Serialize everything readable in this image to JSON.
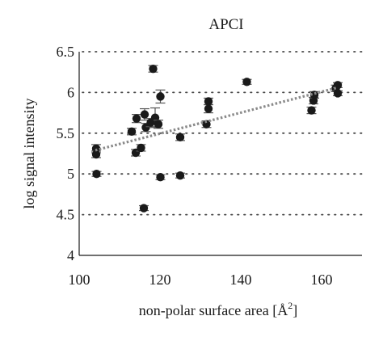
{
  "colors": {
    "point": "#1a1a1a",
    "errorbar": "#555555",
    "trendline": "#8a8a8a",
    "grid": "#4a4a4a",
    "axis": "#1a1a1a"
  },
  "chart_data": {
    "type": "scatter",
    "title": "APCI",
    "xlabel_text": "non-polar surface area [Å",
    "xlabel_unit_exponent": "2",
    "xlabel_close": "]",
    "ylabel": "log signal intensity",
    "xlim": [
      100,
      170
    ],
    "ylim": [
      4,
      6.5
    ],
    "xticks": [
      100,
      120,
      140,
      160
    ],
    "yticks": [
      "4",
      "4.5",
      "5",
      "5.5",
      "6",
      "6.5"
    ],
    "grid": "horizontal dotted",
    "trendline": {
      "style": "dotted",
      "x": [
        104,
        164
      ],
      "y": [
        5.29,
        6.06
      ]
    },
    "series": [
      {
        "points": [
          {
            "x": 104.2,
            "y": 5.31,
            "err": 0.05
          },
          {
            "x": 104.2,
            "y": 5.24,
            "err": 0.04
          },
          {
            "x": 104.3,
            "y": 5.0,
            "err": 0.03
          },
          {
            "x": 113.0,
            "y": 5.52,
            "err": 0.04
          },
          {
            "x": 114.0,
            "y": 5.26,
            "err": 0.04
          },
          {
            "x": 114.2,
            "y": 5.68,
            "err": 0.05
          },
          {
            "x": 115.3,
            "y": 5.32,
            "err": 0.04
          },
          {
            "x": 116.0,
            "y": 4.58,
            "err": 0.03
          },
          {
            "x": 116.2,
            "y": 5.73,
            "err": 0.07
          },
          {
            "x": 116.5,
            "y": 5.57,
            "err": 0.05
          },
          {
            "x": 117.7,
            "y": 5.63,
            "err": 0.05
          },
          {
            "x": 118.3,
            "y": 6.29,
            "err": 0.04
          },
          {
            "x": 118.8,
            "y": 5.69,
            "err": 0.12
          },
          {
            "x": 119.6,
            "y": 5.61,
            "err": 0.05
          },
          {
            "x": 120.1,
            "y": 5.95,
            "err": 0.08
          },
          {
            "x": 120.1,
            "y": 4.96,
            "err": 0.03
          },
          {
            "x": 125.0,
            "y": 5.45,
            "err": 0.04
          },
          {
            "x": 125.0,
            "y": 4.98,
            "err": 0.03
          },
          {
            "x": 131.5,
            "y": 5.61,
            "err": 0.04
          },
          {
            "x": 132.0,
            "y": 5.8,
            "err": 0.05
          },
          {
            "x": 132.0,
            "y": 5.89,
            "err": 0.04
          },
          {
            "x": 141.5,
            "y": 6.13,
            "err": 0.03
          },
          {
            "x": 157.5,
            "y": 5.78,
            "err": 0.04
          },
          {
            "x": 158.0,
            "y": 5.9,
            "err": 0.04
          },
          {
            "x": 158.2,
            "y": 5.97,
            "err": 0.04
          },
          {
            "x": 163.5,
            "y": 6.05,
            "err": 0.04
          },
          {
            "x": 164.0,
            "y": 6.09,
            "err": 0.03
          },
          {
            "x": 164.0,
            "y": 5.99,
            "err": 0.03
          }
        ]
      }
    ]
  }
}
